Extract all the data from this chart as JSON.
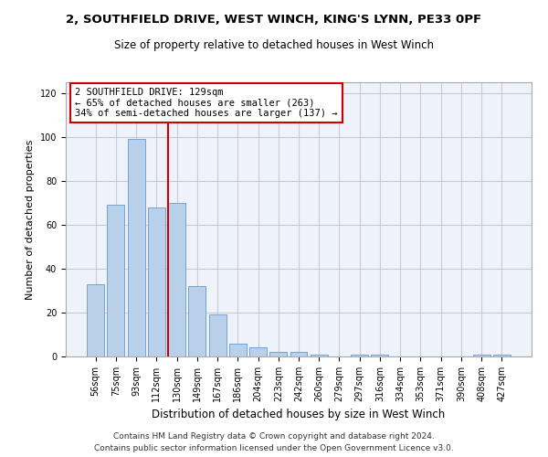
{
  "title_line1": "2, SOUTHFIELD DRIVE, WEST WINCH, KING'S LYNN, PE33 0PF",
  "title_line2": "Size of property relative to detached houses in West Winch",
  "xlabel": "Distribution of detached houses by size in West Winch",
  "ylabel": "Number of detached properties",
  "bar_labels": [
    "56sqm",
    "75sqm",
    "93sqm",
    "112sqm",
    "130sqm",
    "149sqm",
    "167sqm",
    "186sqm",
    "204sqm",
    "223sqm",
    "242sqm",
    "260sqm",
    "279sqm",
    "297sqm",
    "316sqm",
    "334sqm",
    "353sqm",
    "371sqm",
    "390sqm",
    "408sqm",
    "427sqm"
  ],
  "bar_values": [
    33,
    69,
    99,
    68,
    70,
    32,
    19,
    6,
    4,
    2,
    2,
    1,
    0,
    1,
    1,
    0,
    0,
    0,
    0,
    1,
    1
  ],
  "bar_color": "#b8d0ea",
  "bar_edge_color": "#6699cc",
  "vline_color": "#cc0000",
  "annotation_text": "2 SOUTHFIELD DRIVE: 129sqm\n← 65% of detached houses are smaller (263)\n34% of semi-detached houses are larger (137) →",
  "annotation_box_color": "#ffffff",
  "annotation_box_edge": "#cc0000",
  "ylim": [
    0,
    125
  ],
  "yticks": [
    0,
    20,
    40,
    60,
    80,
    100,
    120
  ],
  "grid_color": "#cccccc",
  "background_color": "#eef2fa",
  "footer_line1": "Contains HM Land Registry data © Crown copyright and database right 2024.",
  "footer_line2": "Contains public sector information licensed under the Open Government Licence v3.0.",
  "title_fontsize": 9.5,
  "subtitle_fontsize": 8.5,
  "ylabel_fontsize": 8,
  "xlabel_fontsize": 8.5,
  "tick_fontsize": 7,
  "annotation_fontsize": 7.5,
  "footer_fontsize": 6.5
}
